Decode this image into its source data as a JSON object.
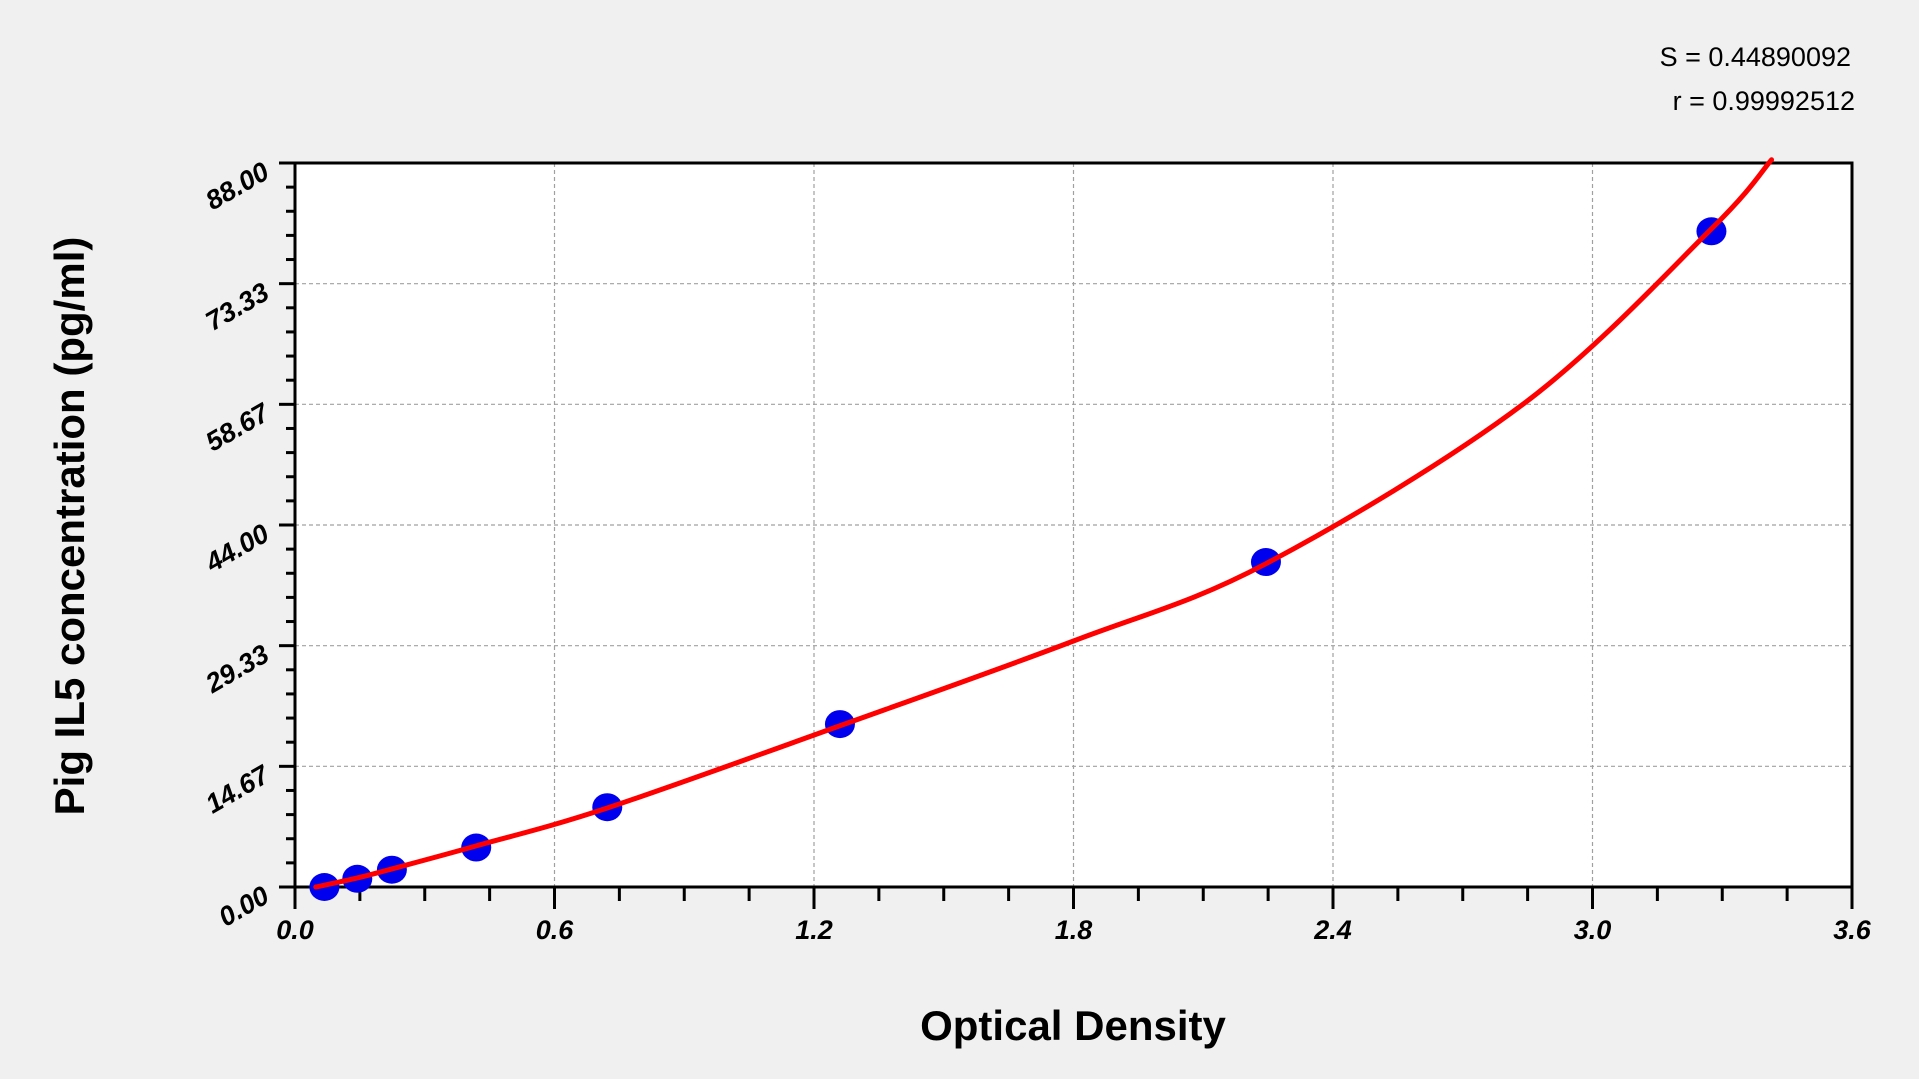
{
  "chart_data": {
    "type": "scatter",
    "xlabel": "Optical Density",
    "ylabel": "Pig IL5 concentration (pg/ml)",
    "xlim": [
      0,
      3.6
    ],
    "ylim": [
      0,
      88
    ],
    "x_ticks": [
      "0.0",
      "0.6",
      "1.2",
      "1.8",
      "2.4",
      "3.0",
      "3.6"
    ],
    "y_ticks": [
      "0.00",
      "14.67",
      "29.33",
      "44.00",
      "58.67",
      "73.33",
      "88.00"
    ],
    "grid": true,
    "annotations": [
      "S = 0.44890092",
      "r = 0.99992512"
    ],
    "points": {
      "color": "#0000ee",
      "x": [
        0.068,
        0.144,
        0.224,
        0.419,
        0.722,
        1.26,
        2.245,
        3.275
      ],
      "y": [
        0.0,
        1.0,
        2.1,
        4.8,
        9.7,
        19.8,
        39.5,
        79.7
      ]
    },
    "fit_curve": {
      "color": "#ff0000",
      "x": [
        0.048,
        0.144,
        0.224,
        0.419,
        0.722,
        1.26,
        1.8,
        2.245,
        2.84,
        3.275,
        3.414
      ],
      "y": [
        0.0,
        1.1,
        2.2,
        5.0,
        9.6,
        19.6,
        29.9,
        39.3,
        58.7,
        80.0,
        88.4
      ]
    }
  }
}
